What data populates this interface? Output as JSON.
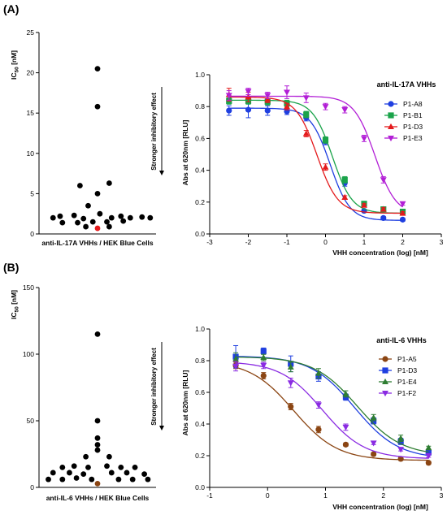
{
  "panels": [
    {
      "label": "(A)",
      "annotation": "Stronger inhibitory effect",
      "scatter": {
        "ylabel_main": "IC",
        "ylabel_sub": "50",
        "ylabel_unit": " [nM]",
        "xlabel": "anti-IL-17A VHHs / HEK Blue Cells",
        "yticks": [
          0,
          5,
          10,
          15,
          20,
          25
        ]
      },
      "curve": {
        "title": "anti-IL-17A VHHs",
        "xlabel": "VHH concentration (log) [nM]",
        "ylabel": "Abs at 620nm [RLU]",
        "xticks": [
          -3,
          -2,
          -1,
          0,
          1,
          2,
          3
        ],
        "yticks": [
          "0.0",
          "0.2",
          "0.4",
          "0.6",
          "0.8",
          "1.0"
        ]
      }
    },
    {
      "label": "(B)",
      "annotation": "Stronger inhibitory effect",
      "scatter": {
        "ylabel_main": "IC",
        "ylabel_sub": "50",
        "ylabel_unit": " [nM]",
        "xlabel": "anti-IL-6 VHHs / HEK Blue Cells",
        "yticks": [
          0,
          50,
          100,
          150
        ]
      },
      "curve": {
        "title": "anti-IL-6 VHHs",
        "xlabel": "VHH concentration (log) [nM]",
        "ylabel": "Abs at 620nm [RLU]",
        "xticks": [
          -1,
          0,
          1,
          2,
          3
        ],
        "yticks": [
          "0.0",
          "0.2",
          "0.4",
          "0.6",
          "0.8",
          "1.0"
        ]
      }
    }
  ],
  "chart_data": [
    {
      "type": "scatter",
      "panel": "A",
      "ylim": [
        0,
        25
      ],
      "grid": false,
      "points": [
        {
          "x": 0.5,
          "y": 20.5
        },
        {
          "x": 0.5,
          "y": 15.8
        },
        {
          "x": 0.35,
          "y": 6.0
        },
        {
          "x": 0.6,
          "y": 6.3
        },
        {
          "x": 0.5,
          "y": 5.0
        },
        {
          "x": 0.42,
          "y": 3.5
        },
        {
          "x": 0.18,
          "y": 2.2
        },
        {
          "x": 0.3,
          "y": 2.3
        },
        {
          "x": 0.52,
          "y": 2.5
        },
        {
          "x": 0.7,
          "y": 2.2
        },
        {
          "x": 0.88,
          "y": 2.1
        },
        {
          "x": 0.12,
          "y": 2.0
        },
        {
          "x": 0.38,
          "y": 1.9
        },
        {
          "x": 0.62,
          "y": 2.0
        },
        {
          "x": 0.78,
          "y": 2.0
        },
        {
          "x": 0.95,
          "y": 2.0
        },
        {
          "x": 0.2,
          "y": 1.4
        },
        {
          "x": 0.33,
          "y": 1.4
        },
        {
          "x": 0.46,
          "y": 1.5
        },
        {
          "x": 0.58,
          "y": 1.5
        },
        {
          "x": 0.72,
          "y": 1.6
        },
        {
          "x": 0.4,
          "y": 0.9
        },
        {
          "x": 0.6,
          "y": 0.9
        }
      ],
      "highlight": {
        "x": 0.5,
        "y": 0.7,
        "color": "#e41a1c"
      }
    },
    {
      "type": "line",
      "panel": "A",
      "title": "anti-IL-17A VHHs",
      "xlabel": "VHH concentration (log) [nM]",
      "ylabel": "Abs at 620nm [RLU]",
      "xlim": [
        -3,
        3
      ],
      "ylim": [
        0,
        1.0
      ],
      "legend_position": "top-right",
      "series": [
        {
          "name": "P1-A8",
          "color": "#1f3fe0",
          "marker": "circle",
          "x": [
            -2.5,
            -2,
            -1.5,
            -1,
            -0.5,
            0,
            0.5,
            1,
            1.5,
            2
          ],
          "y": [
            0.775,
            0.78,
            0.775,
            0.77,
            0.73,
            0.58,
            0.32,
            0.145,
            0.1,
            0.09
          ],
          "err": [
            0.03,
            0.05,
            0.03,
            0.02,
            0.02,
            0.02,
            0.02,
            0.01,
            0.01,
            0.01
          ],
          "fit": {
            "top": 0.79,
            "bottom": 0.085,
            "ec50": 0.12,
            "hill": 1.7
          }
        },
        {
          "name": "P1-B1",
          "color": "#1aa34a",
          "marker": "square",
          "x": [
            -2.5,
            -2,
            -1.5,
            -1,
            -0.5,
            0,
            0.5,
            1,
            1.5,
            2
          ],
          "y": [
            0.835,
            0.835,
            0.83,
            0.82,
            0.75,
            0.59,
            0.34,
            0.19,
            0.155,
            0.14
          ],
          "err": [
            0.02,
            0.02,
            0.02,
            0.02,
            0.02,
            0.02,
            0.02,
            0.01,
            0.01,
            0.01
          ],
          "fit": {
            "top": 0.84,
            "bottom": 0.13,
            "ec50": 0.18,
            "hill": 1.7
          }
        },
        {
          "name": "P1-D3",
          "color": "#e41a1c",
          "marker": "triangle-up",
          "x": [
            -2.5,
            -2,
            -1.5,
            -1,
            -0.5,
            0,
            0.5,
            1,
            1.5,
            2
          ],
          "y": [
            0.875,
            0.86,
            0.845,
            0.8,
            0.63,
            0.42,
            0.23,
            0.18,
            0.155,
            0.13
          ],
          "err": [
            0.04,
            0.03,
            0.02,
            0.02,
            0.02,
            0.02,
            0.01,
            0.01,
            0.01,
            0.01
          ],
          "fit": {
            "top": 0.86,
            "bottom": 0.13,
            "ec50": -0.22,
            "hill": 1.6
          }
        },
        {
          "name": "P1-E3",
          "color": "#b21fd6",
          "marker": "triangle-down",
          "x": [
            -2.5,
            -2,
            -1.5,
            -1,
            -0.5,
            0,
            0.5,
            1,
            1.5,
            2
          ],
          "y": [
            0.87,
            0.895,
            0.87,
            0.89,
            0.855,
            0.8,
            0.78,
            0.6,
            0.34,
            0.19
          ],
          "err": [
            0.03,
            0.02,
            0.02,
            0.04,
            0.03,
            0.02,
            0.02,
            0.02,
            0.02,
            0.01
          ],
          "fit": {
            "top": 0.865,
            "bottom": 0.12,
            "ec50": 1.28,
            "hill": 1.6
          }
        }
      ]
    },
    {
      "type": "scatter",
      "panel": "B",
      "ylim": [
        0,
        150
      ],
      "grid": false,
      "points": [
        {
          "x": 0.5,
          "y": 115
        },
        {
          "x": 0.5,
          "y": 50
        },
        {
          "x": 0.5,
          "y": 37
        },
        {
          "x": 0.5,
          "y": 32
        },
        {
          "x": 0.5,
          "y": 28
        },
        {
          "x": 0.4,
          "y": 23
        },
        {
          "x": 0.6,
          "y": 23
        },
        {
          "x": 0.2,
          "y": 15
        },
        {
          "x": 0.3,
          "y": 16
        },
        {
          "x": 0.42,
          "y": 15
        },
        {
          "x": 0.58,
          "y": 16
        },
        {
          "x": 0.7,
          "y": 15
        },
        {
          "x": 0.82,
          "y": 15
        },
        {
          "x": 0.12,
          "y": 11
        },
        {
          "x": 0.26,
          "y": 11
        },
        {
          "x": 0.38,
          "y": 10
        },
        {
          "x": 0.62,
          "y": 11
        },
        {
          "x": 0.75,
          "y": 11
        },
        {
          "x": 0.9,
          "y": 10
        },
        {
          "x": 0.08,
          "y": 6
        },
        {
          "x": 0.2,
          "y": 6
        },
        {
          "x": 0.32,
          "y": 7
        },
        {
          "x": 0.45,
          "y": 6
        },
        {
          "x": 0.68,
          "y": 6
        },
        {
          "x": 0.8,
          "y": 6
        },
        {
          "x": 0.93,
          "y": 6
        }
      ],
      "highlight": {
        "x": 0.5,
        "y": 2.8,
        "color": "#8b4513"
      }
    },
    {
      "type": "line",
      "panel": "B",
      "title": "anti-IL-6 VHHs",
      "xlabel": "VHH concentration (log) [nM]",
      "ylabel": "Abs at 620nm [RLU]",
      "xlim": [
        -1,
        3
      ],
      "ylim": [
        0,
        1.0
      ],
      "legend_position": "top-right",
      "series": [
        {
          "name": "P1-A5",
          "color": "#8b4513",
          "marker": "circle",
          "x": [
            -0.55,
            -0.07,
            0.4,
            0.88,
            1.35,
            1.83,
            2.3,
            2.78
          ],
          "y": [
            0.77,
            0.705,
            0.51,
            0.365,
            0.27,
            0.21,
            0.18,
            0.155
          ],
          "err": [
            0.02,
            0.02,
            0.02,
            0.02,
            0.01,
            0.01,
            0.01,
            0.01
          ],
          "fit": {
            "top": 0.8,
            "bottom": 0.17,
            "ec50": 0.45,
            "hill": 1.15
          }
        },
        {
          "name": "P1-D3",
          "color": "#1f3fe0",
          "marker": "square",
          "x": [
            -0.55,
            -0.07,
            0.4,
            0.88,
            1.35,
            1.83,
            2.3,
            2.78
          ],
          "y": [
            0.825,
            0.86,
            0.78,
            0.7,
            0.57,
            0.42,
            0.29,
            0.22
          ],
          "err": [
            0.07,
            0.02,
            0.05,
            0.03,
            0.02,
            0.02,
            0.02,
            0.01
          ],
          "fit": {
            "top": 0.83,
            "bottom": 0.18,
            "ec50": 1.5,
            "hill": 1.15
          }
        },
        {
          "name": "P1-E4",
          "color": "#2e7d32",
          "marker": "triangle-up",
          "x": [
            -0.55,
            -0.07,
            0.4,
            0.88,
            1.35,
            1.83,
            2.3,
            2.78
          ],
          "y": [
            0.81,
            0.82,
            0.76,
            0.72,
            0.59,
            0.44,
            0.31,
            0.25
          ],
          "err": [
            0.04,
            0.02,
            0.03,
            0.03,
            0.02,
            0.02,
            0.02,
            0.01
          ],
          "fit": {
            "top": 0.825,
            "bottom": 0.2,
            "ec50": 1.55,
            "hill": 1.15
          }
        },
        {
          "name": "P1-F2",
          "color": "#8a2be2",
          "marker": "triangle-down",
          "x": [
            -0.55,
            -0.07,
            0.4,
            0.88,
            1.35,
            1.83,
            2.3,
            2.78
          ],
          "y": [
            0.765,
            0.77,
            0.66,
            0.52,
            0.38,
            0.28,
            0.24,
            0.2
          ],
          "err": [
            0.03,
            0.02,
            0.03,
            0.02,
            0.02,
            0.01,
            0.01,
            0.01
          ],
          "fit": {
            "top": 0.795,
            "bottom": 0.18,
            "ec50": 0.95,
            "hill": 1.2
          }
        }
      ]
    }
  ]
}
